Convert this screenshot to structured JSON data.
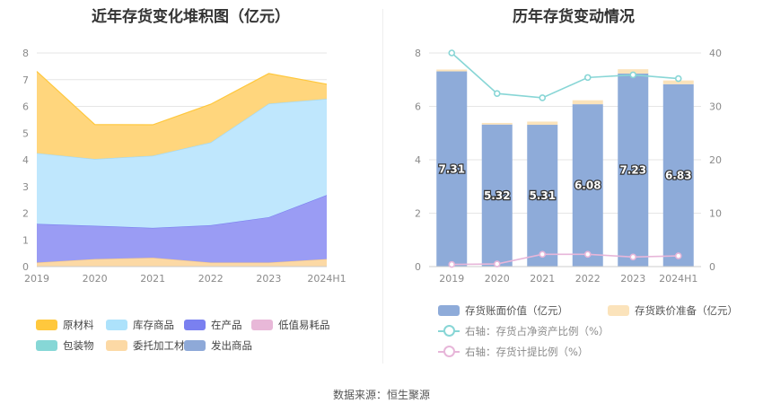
{
  "source": "数据来源：恒生聚源",
  "chart_data": [
    {
      "type": "area",
      "title": "近年存货变化堆积图（亿元）",
      "categories": [
        "2019",
        "2020",
        "2021",
        "2022",
        "2023",
        "2024H1"
      ],
      "ylim": [
        0,
        8
      ],
      "yticks": [
        "0",
        "1",
        "2",
        "3",
        "4",
        "5",
        "6",
        "7",
        "8"
      ],
      "legend_position": "bottom",
      "stack_order_bottom_to_top": [
        "委托加工材料",
        "在产品",
        "库存商品",
        "原材料"
      ],
      "series": [
        {
          "name": "委托加工材料",
          "color": "#fcd9a5",
          "values": [
            0.15,
            0.28,
            0.33,
            0.15,
            0.15,
            0.28
          ]
        },
        {
          "name": "在产品",
          "color": "#9a9cf4",
          "values": [
            1.45,
            1.25,
            1.12,
            1.4,
            1.7,
            2.4
          ]
        },
        {
          "name": "库存商品",
          "color": "#bfe7fd",
          "values": [
            2.65,
            2.5,
            2.7,
            3.1,
            4.25,
            3.6
          ]
        },
        {
          "name": "原材料",
          "color": "#ffd67d",
          "values": [
            3.06,
            1.29,
            1.16,
            1.43,
            1.13,
            0.55
          ]
        },
        {
          "name": "低值易耗品",
          "color": "#e8b8d8",
          "values": [
            0,
            0,
            0,
            0,
            0,
            0
          ]
        },
        {
          "name": "包装物",
          "color": "#86d7d6",
          "values": [
            0,
            0,
            0,
            0,
            0,
            0
          ]
        },
        {
          "name": "发出商品",
          "color": "#8ea9d8",
          "values": [
            0,
            0,
            0,
            0,
            0,
            0
          ]
        }
      ],
      "legend": [
        {
          "name": "原材料",
          "color": "#ffc83d"
        },
        {
          "name": "库存商品",
          "color": "#ade2fb"
        },
        {
          "name": "在产品",
          "color": "#7a80f0"
        },
        {
          "name": "低值易耗品",
          "color": "#e8b8d8"
        },
        {
          "name": "包装物",
          "color": "#86d7d6"
        },
        {
          "name": "委托加工材料",
          "color": "#fcd9a5"
        },
        {
          "name": "发出商品",
          "color": "#8ea9d8"
        }
      ]
    },
    {
      "type": "bar",
      "title": "历年存货变动情况",
      "categories": [
        "2019",
        "2020",
        "2021",
        "2022",
        "2023",
        "2024H1"
      ],
      "ylim": [
        0,
        8
      ],
      "yticks": [
        "0",
        "2",
        "4",
        "6",
        "8"
      ],
      "y2lim": [
        0,
        40
      ],
      "y2ticks": [
        "0",
        "10",
        "20",
        "30",
        "40"
      ],
      "legend_position": "bottom",
      "bar_series": [
        {
          "name": "存货账面价值（亿元）",
          "color": "#8eabd9",
          "values": [
            7.31,
            5.32,
            5.31,
            6.08,
            7.23,
            6.83
          ],
          "labels": [
            "7.31",
            "5.32",
            "5.31",
            "6.08",
            "7.23",
            "6.83"
          ]
        },
        {
          "name": "存货跌价准备（亿元）",
          "color": "#fbe3bb",
          "values": [
            0.07,
            0.06,
            0.12,
            0.15,
            0.16,
            0.14
          ]
        }
      ],
      "line_series": [
        {
          "name": "右轴：存货占净资产比例（%）",
          "color": "#88d6d6",
          "axis": "right",
          "values": [
            40.0,
            32.4,
            31.6,
            35.4,
            35.9,
            35.2
          ]
        },
        {
          "name": "右轴：存货计提比例（%）",
          "color": "#e7b6d9",
          "axis": "right",
          "values": [
            0.4,
            0.5,
            2.3,
            2.3,
            1.8,
            2.0
          ]
        }
      ]
    }
  ]
}
